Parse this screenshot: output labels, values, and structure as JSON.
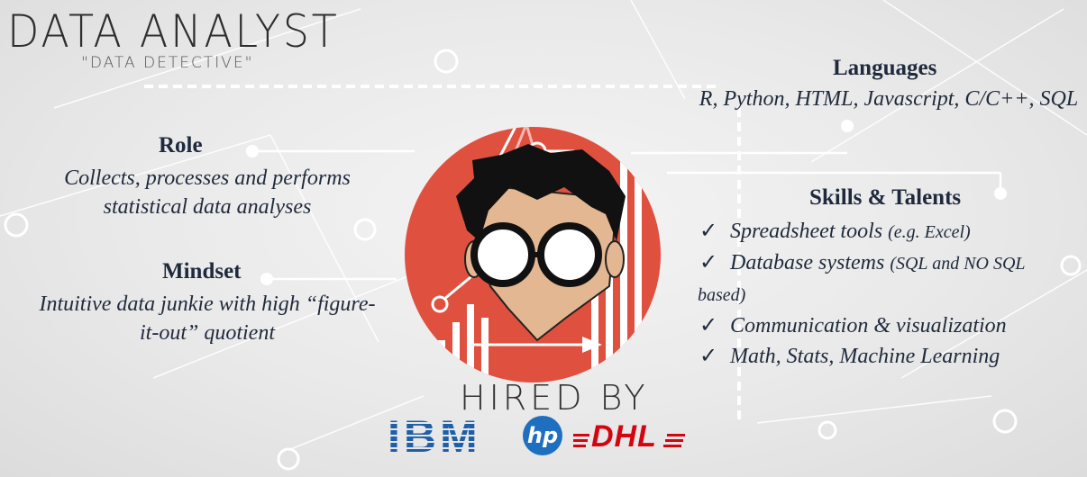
{
  "header": {
    "title": "DATA ANALYST",
    "subtitle": "\"DATA DETECTIVE\""
  },
  "role": {
    "heading": "Role",
    "text": "Collects, processes and performs statistical data analyses"
  },
  "mindset": {
    "heading": "Mindset",
    "text": "Intuitive data junkie with high “figure-it-out” quotient"
  },
  "languages": {
    "heading": "Languages",
    "text": "R, Python, HTML, Javascript, C/C++, SQL"
  },
  "skills": {
    "heading": "Skills & Talents",
    "check": "✓",
    "items": [
      {
        "main": "Spreadsheet tools",
        "note": "(e.g. Excel)"
      },
      {
        "main": "Database systems",
        "note": "(SQL and NO SQL"
      },
      {
        "main": "",
        "note": "based)"
      },
      {
        "main": "Communication & visualization",
        "note": ""
      },
      {
        "main": "Math, Stats, Machine Learning",
        "note": ""
      }
    ]
  },
  "hired": {
    "label": "HIRED BY",
    "logos": {
      "ibm": "IBM",
      "hp": "hp",
      "dhl": "DHL"
    }
  },
  "colors": {
    "accent_red": "#e0503f",
    "text_navy": "#1f2a3c",
    "ibm_blue": "#1f5fa8",
    "hp_blue": "#1f6fc0",
    "dhl_red": "#d40511"
  },
  "icons": [
    "analyst-avatar-icon",
    "ibm-logo-icon",
    "hp-logo-icon",
    "dhl-logo-icon",
    "connector-node-icon"
  ]
}
